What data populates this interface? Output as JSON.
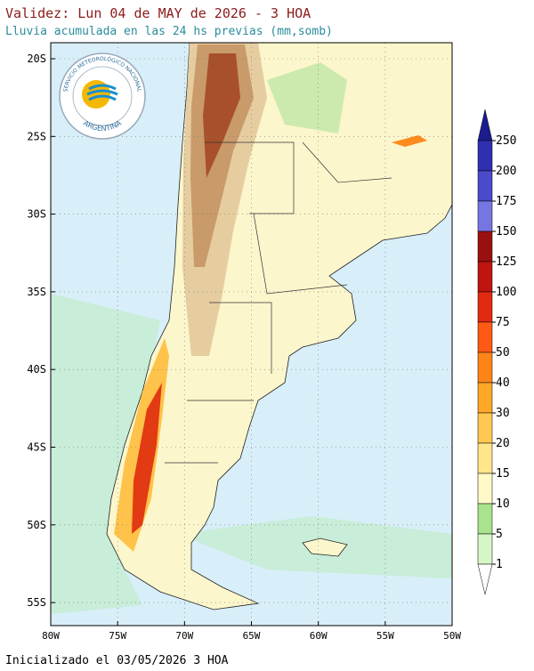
{
  "header": {
    "title": "Validez: Lun 04 de MAY de 2026 - 3 HOA",
    "subtitle": "Lluvia acumulada en las 24 hs previas (mm,somb)"
  },
  "map": {
    "lat_labels": [
      "20S",
      "25S",
      "30S",
      "35S",
      "40S",
      "45S",
      "50S",
      "55S"
    ],
    "lon_labels": [
      "80W",
      "75W",
      "70W",
      "65W",
      "60W",
      "55W",
      "50W"
    ]
  },
  "logo": {
    "ring_text": "SERVICIO METEOROLÓGICO NACIONAL",
    "country": "ARGENTINA"
  },
  "colorbar": {
    "labels": [
      "250",
      "200",
      "175",
      "150",
      "125",
      "100",
      "75",
      "50",
      "40",
      "30",
      "20",
      "15",
      "10",
      "5",
      "1"
    ],
    "colors": [
      "#1c1c8e",
      "#2f2fb0",
      "#4a4acb",
      "#7676e2",
      "#9a1010",
      "#bf1410",
      "#e22a10",
      "#ff5a14",
      "#ff8418",
      "#ffa828",
      "#ffc850",
      "#ffe68a",
      "#fff9c8",
      "#a8e48c",
      "#d6f6c8",
      "#ffffff"
    ]
  },
  "footer": {
    "init": "Inicializado el 03/05/2026 3 HOA"
  }
}
